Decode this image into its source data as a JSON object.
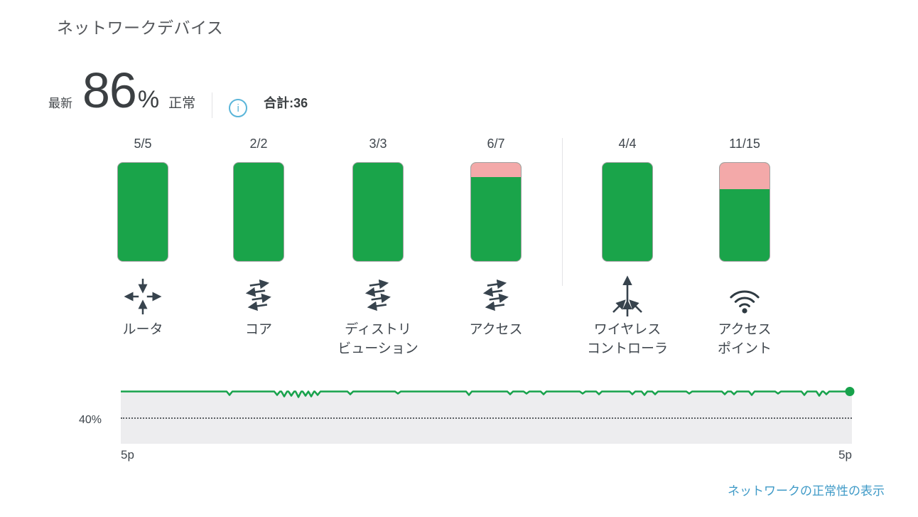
{
  "header": {
    "title": "ネットワークデバイス"
  },
  "summary": {
    "latest_label": "最新",
    "health_value": "86",
    "percent_sign": "%",
    "healthy_label": "正常",
    "info_icon": "info-icon",
    "total_label": "合計:36"
  },
  "categories": [
    {
      "count": "5/5",
      "healthy": 5,
      "total": 5,
      "name_line1": "ルータ",
      "name_line2": "",
      "icon": "router-icon"
    },
    {
      "count": "2/2",
      "healthy": 2,
      "total": 2,
      "name_line1": "コア",
      "name_line2": "",
      "icon": "switch-icon"
    },
    {
      "count": "3/3",
      "healthy": 3,
      "total": 3,
      "name_line1": "ディストリ",
      "name_line2": "ビューション",
      "icon": "switch-icon"
    },
    {
      "count": "6/7",
      "healthy": 6,
      "total": 7,
      "name_line1": "アクセス",
      "name_line2": "",
      "icon": "switch-icon"
    },
    {
      "count": "4/4",
      "healthy": 4,
      "total": 4,
      "name_line1": "ワイヤレス",
      "name_line2": "コントローラ",
      "icon": "wireless-controller-icon"
    },
    {
      "count": "11/15",
      "healthy": 11,
      "total": 15,
      "name_line1": "アクセス",
      "name_line2": "ポイント",
      "icon": "access-point-icon"
    }
  ],
  "chart_data": {
    "type": "line",
    "y_gridline_label": "40%",
    "x_tick_labels": [
      "5p",
      "5p"
    ],
    "baseline_value_pct": 97,
    "y_implied_range": [
      0,
      100
    ],
    "grid": "single dotted gridline at 40%",
    "dips": [
      [
        153,
        5
      ],
      [
        220,
        5
      ],
      [
        230,
        7
      ],
      [
        240,
        6
      ],
      [
        250,
        8
      ],
      [
        260,
        6
      ],
      [
        268,
        7
      ],
      [
        277,
        5
      ],
      [
        323,
        4
      ],
      [
        390,
        3
      ],
      [
        490,
        5
      ],
      [
        548,
        4
      ],
      [
        571,
        3
      ],
      [
        595,
        4
      ],
      [
        650,
        3
      ],
      [
        673,
        4
      ],
      [
        720,
        4
      ],
      [
        737,
        5
      ],
      [
        752,
        4
      ],
      [
        800,
        3
      ],
      [
        850,
        4
      ],
      [
        863,
        4
      ],
      [
        888,
        5
      ],
      [
        925,
        3
      ],
      [
        962,
        5
      ],
      [
        983,
        6
      ],
      [
        993,
        4
      ]
    ]
  },
  "footer": {
    "link_label": "ネットワークの正常性の表示"
  },
  "colors": {
    "healthy_green": "#1aa44a",
    "unhealthy_pink": "#f3a9a9",
    "band_gray": "#ededef",
    "link_blue": "#3f9ac7",
    "info_blue": "#5ab5d9",
    "title_gray": "#53565a"
  }
}
